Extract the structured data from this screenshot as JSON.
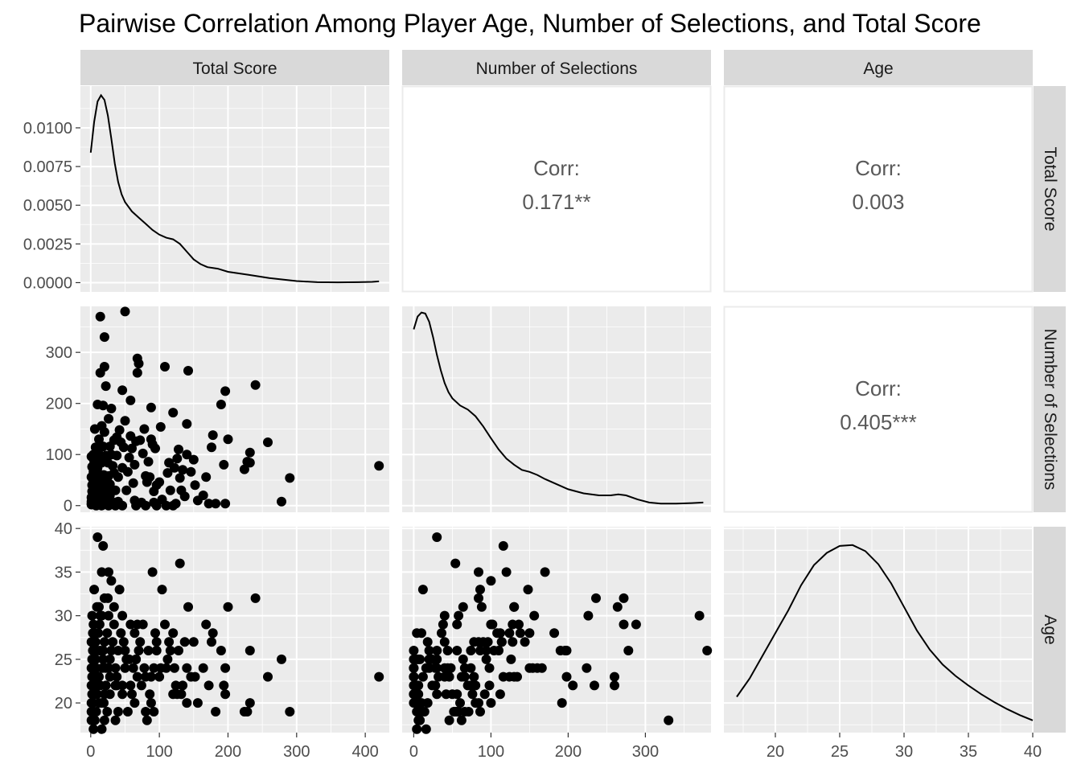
{
  "chart_data": {
    "type": "scatter",
    "title": "Pairwise Correlation Among Player Age, Number of Selections, and Total Score",
    "variables": [
      "Total Score",
      "Number of Selections",
      "Age"
    ],
    "grid": true,
    "axes": {
      "Total Score": {
        "range": [
          -15,
          435
        ],
        "ticks": [
          0,
          100,
          200,
          300,
          400
        ]
      },
      "Number of Selections": {
        "range": [
          -15,
          385
        ],
        "ticks": [
          0,
          100,
          200,
          300
        ]
      },
      "Age": {
        "range": [
          16,
          40
        ],
        "ticks": [
          20,
          25,
          30,
          35,
          40
        ]
      },
      "Total Score density": {
        "range": [
          -0.0006,
          0.0127
        ],
        "ticks": [
          "0.0000",
          "0.0025",
          "0.0050",
          "0.0075",
          "0.0100"
        ]
      },
      "Number of Selections (rows)": {
        "range": [
          -13,
          390
        ],
        "ticks": [
          0,
          100,
          200,
          300
        ]
      },
      "Age (rows)": {
        "range": [
          16.6,
          40.2
        ],
        "ticks": [
          20,
          25,
          30,
          35,
          40
        ]
      }
    },
    "correlations": [
      {
        "pair": [
          "Total Score",
          "Number of Selections"
        ],
        "label": "Corr:",
        "value": "0.171**"
      },
      {
        "pair": [
          "Total Score",
          "Age"
        ],
        "label": "Corr:",
        "value": "0.003"
      },
      {
        "pair": [
          "Number of Selections",
          "Age"
        ],
        "label": "Corr:",
        "value": "0.405***"
      }
    ],
    "densities": {
      "Total Score": [
        [
          0,
          0.0084
        ],
        [
          5,
          0.0104
        ],
        [
          10,
          0.0117
        ],
        [
          15,
          0.0121
        ],
        [
          20,
          0.0118
        ],
        [
          25,
          0.0108
        ],
        [
          30,
          0.0093
        ],
        [
          35,
          0.0077
        ],
        [
          40,
          0.0065
        ],
        [
          45,
          0.0057
        ],
        [
          50,
          0.0052
        ],
        [
          60,
          0.0046
        ],
        [
          70,
          0.0042
        ],
        [
          80,
          0.0038
        ],
        [
          90,
          0.0034
        ],
        [
          100,
          0.0031
        ],
        [
          110,
          0.0029
        ],
        [
          120,
          0.0028
        ],
        [
          130,
          0.0025
        ],
        [
          140,
          0.002
        ],
        [
          150,
          0.0015
        ],
        [
          160,
          0.0012
        ],
        [
          170,
          0.001
        ],
        [
          185,
          0.0009
        ],
        [
          200,
          0.0007
        ],
        [
          215,
          0.0006
        ],
        [
          230,
          0.0005
        ],
        [
          245,
          0.0004
        ],
        [
          260,
          0.0003
        ],
        [
          280,
          0.0002
        ],
        [
          300,
          0.0001
        ],
        [
          330,
          3e-05
        ],
        [
          360,
          2e-05
        ],
        [
          390,
          3e-05
        ],
        [
          410,
          5e-05
        ],
        [
          420,
          8e-05
        ]
      ],
      "Number of Selections": [
        [
          0,
          345
        ],
        [
          5,
          370
        ],
        [
          10,
          378
        ],
        [
          15,
          376
        ],
        [
          20,
          360
        ],
        [
          25,
          330
        ],
        [
          30,
          295
        ],
        [
          35,
          265
        ],
        [
          40,
          240
        ],
        [
          45,
          222
        ],
        [
          50,
          210
        ],
        [
          60,
          196
        ],
        [
          70,
          188
        ],
        [
          80,
          175
        ],
        [
          90,
          155
        ],
        [
          100,
          132
        ],
        [
          110,
          110
        ],
        [
          120,
          92
        ],
        [
          130,
          80
        ],
        [
          140,
          70
        ],
        [
          150,
          66
        ],
        [
          160,
          60
        ],
        [
          170,
          52
        ],
        [
          185,
          42
        ],
        [
          200,
          32
        ],
        [
          220,
          24
        ],
        [
          240,
          20
        ],
        [
          255,
          20
        ],
        [
          265,
          22
        ],
        [
          275,
          20
        ],
        [
          290,
          12
        ],
        [
          305,
          6
        ],
        [
          320,
          4
        ],
        [
          340,
          4
        ],
        [
          360,
          5
        ],
        [
          375,
          6
        ]
      ],
      "Age": [
        [
          17,
          20.7
        ],
        [
          18,
          22.8
        ],
        [
          19,
          25.4
        ],
        [
          20,
          28.0
        ],
        [
          21,
          30.6
        ],
        [
          22,
          33.5
        ],
        [
          23,
          35.8
        ],
        [
          24,
          37.2
        ],
        [
          25,
          38.0
        ],
        [
          26,
          38.1
        ],
        [
          27,
          37.4
        ],
        [
          28,
          35.9
        ],
        [
          29,
          33.7
        ],
        [
          30,
          31.0
        ],
        [
          31,
          28.3
        ],
        [
          32,
          26.1
        ],
        [
          33,
          24.4
        ],
        [
          34,
          23.1
        ],
        [
          35,
          22.0
        ],
        [
          36,
          21.0
        ],
        [
          37,
          20.1
        ],
        [
          38,
          19.3
        ],
        [
          39,
          18.6
        ],
        [
          40,
          18.0
        ]
      ]
    },
    "players": [
      [
        420,
        78,
        23
      ],
      [
        290,
        54,
        19
      ],
      [
        278,
        8,
        25
      ],
      [
        258,
        124,
        23
      ],
      [
        240,
        236,
        32
      ],
      [
        232,
        84,
        20
      ],
      [
        232,
        104,
        26
      ],
      [
        228,
        86,
        19
      ],
      [
        224,
        71,
        19
      ],
      [
        200,
        130,
        31
      ],
      [
        196,
        224,
        24
      ],
      [
        196,
        4,
        21
      ],
      [
        194,
        80,
        22
      ],
      [
        190,
        198,
        26
      ],
      [
        182,
        4,
        19
      ],
      [
        178,
        138,
        28
      ],
      [
        176,
        114,
        27
      ],
      [
        172,
        4,
        22
      ],
      [
        168,
        56,
        29
      ],
      [
        164,
        20,
        24
      ],
      [
        156,
        10,
        20
      ],
      [
        152,
        40,
        23
      ],
      [
        150,
        90,
        27
      ],
      [
        146,
        66,
        23
      ],
      [
        142,
        264,
        31
      ],
      [
        140,
        100,
        20
      ],
      [
        140,
        160,
        24
      ],
      [
        137,
        18,
        27
      ],
      [
        134,
        70,
        22
      ],
      [
        132,
        30,
        21
      ],
      [
        130,
        54,
        36
      ],
      [
        128,
        110,
        26
      ],
      [
        126,
        92,
        21
      ],
      [
        124,
        4,
        22
      ],
      [
        122,
        74,
        24
      ],
      [
        120,
        182,
        28
      ],
      [
        116,
        30,
        26
      ],
      [
        114,
        84,
        27
      ],
      [
        112,
        64,
        25
      ],
      [
        108,
        272,
        29
      ],
      [
        104,
        12,
        33
      ],
      [
        102,
        154,
        24
      ],
      [
        100,
        46,
        23
      ],
      [
        96,
        40,
        27
      ],
      [
        94,
        112,
        28
      ],
      [
        92,
        28,
        24
      ],
      [
        92,
        6,
        19
      ],
      [
        90,
        120,
        35
      ],
      [
        88,
        130,
        23
      ],
      [
        88,
        192,
        20
      ],
      [
        86,
        56,
        21
      ],
      [
        84,
        86,
        26
      ],
      [
        82,
        46,
        18
      ],
      [
        80,
        58,
        19
      ],
      [
        78,
        150,
        24
      ],
      [
        76,
        102,
        29
      ],
      [
        74,
        6,
        22
      ],
      [
        72,
        128,
        27
      ],
      [
        70,
        278,
        26
      ],
      [
        68,
        260,
        23
      ],
      [
        68,
        288,
        29
      ],
      [
        66,
        126,
        25
      ],
      [
        64,
        80,
        20
      ],
      [
        64,
        10,
        28
      ],
      [
        62,
        44,
        24
      ],
      [
        60,
        112,
        21
      ],
      [
        58,
        136,
        29
      ],
      [
        58,
        206,
        22
      ],
      [
        56,
        94,
        25
      ],
      [
        54,
        66,
        19
      ],
      [
        52,
        30,
        25
      ],
      [
        50,
        166,
        24
      ],
      [
        50,
        380,
        26
      ],
      [
        48,
        114,
        27
      ],
      [
        46,
        74,
        22
      ],
      [
        46,
        226,
        30
      ],
      [
        44,
        124,
        28
      ],
      [
        42,
        148,
        33
      ],
      [
        40,
        56,
        26
      ],
      [
        40,
        8,
        19
      ],
      [
        38,
        98,
        22
      ],
      [
        38,
        134,
        23
      ],
      [
        36,
        30,
        24
      ],
      [
        36,
        6,
        18
      ],
      [
        34,
        128,
        29
      ],
      [
        34,
        64,
        31
      ],
      [
        32,
        78,
        27
      ],
      [
        30,
        100,
        34
      ],
      [
        30,
        190,
        26
      ],
      [
        28,
        20,
        25
      ],
      [
        28,
        116,
        23
      ],
      [
        28,
        42,
        21
      ],
      [
        26,
        58,
        30
      ],
      [
        26,
        170,
        35
      ],
      [
        25,
        84,
        32
      ],
      [
        24,
        36,
        28
      ],
      [
        24,
        10,
        19
      ],
      [
        22,
        234,
        22
      ],
      [
        22,
        98,
        24
      ],
      [
        20,
        144,
        27
      ],
      [
        20,
        272,
        32
      ],
      [
        20,
        330,
        18
      ],
      [
        20,
        6,
        21
      ],
      [
        19,
        60,
        20
      ],
      [
        18,
        24,
        25
      ],
      [
        18,
        196,
        26
      ],
      [
        18,
        116,
        38
      ],
      [
        17,
        48,
        24
      ],
      [
        16,
        84,
        35
      ],
      [
        16,
        156,
        30
      ],
      [
        16,
        4,
        17
      ],
      [
        14,
        370,
        30
      ],
      [
        14,
        260,
        22
      ],
      [
        14,
        94,
        26
      ],
      [
        13,
        38,
        29
      ],
      [
        12,
        18,
        20
      ],
      [
        12,
        62,
        23
      ],
      [
        12,
        130,
        31
      ],
      [
        11,
        108,
        28
      ],
      [
        10,
        198,
        23
      ],
      [
        10,
        74,
        26
      ],
      [
        10,
        4,
        22
      ],
      [
        10,
        30,
        39
      ],
      [
        9,
        50,
        21
      ],
      [
        9,
        88,
        31
      ],
      [
        8,
        14,
        19
      ],
      [
        8,
        40,
        24
      ],
      [
        7,
        114,
        27
      ],
      [
        7,
        6,
        25
      ],
      [
        6,
        62,
        18
      ],
      [
        6,
        24,
        22
      ],
      [
        6,
        150,
        28
      ],
      [
        5,
        86,
        33
      ],
      [
        5,
        4,
        21
      ],
      [
        5,
        44,
        26
      ],
      [
        4,
        16,
        17
      ],
      [
        4,
        100,
        29
      ],
      [
        4,
        32,
        23
      ],
      [
        4,
        66,
        24
      ],
      [
        3,
        8,
        20
      ],
      [
        3,
        20,
        26
      ],
      [
        3,
        52,
        19
      ],
      [
        3,
        4,
        28
      ],
      [
        2,
        12,
        23
      ],
      [
        2,
        76,
        21
      ],
      [
        2,
        28,
        22
      ],
      [
        2,
        4,
        25
      ],
      [
        2,
        40,
        30
      ],
      [
        1,
        8,
        18
      ],
      [
        1,
        2,
        20
      ],
      [
        1,
        16,
        24
      ],
      [
        1,
        4,
        22
      ],
      [
        1,
        96,
        27
      ],
      [
        1,
        56,
        19
      ],
      [
        8,
        0,
        23
      ],
      [
        16,
        0,
        20
      ],
      [
        26,
        0,
        24
      ],
      [
        36,
        0,
        22
      ],
      [
        46,
        0,
        21
      ],
      [
        66,
        0,
        25
      ],
      [
        80,
        0,
        23
      ],
      [
        96,
        0,
        26
      ],
      [
        110,
        0,
        24
      ],
      [
        120,
        0,
        21
      ]
    ]
  }
}
